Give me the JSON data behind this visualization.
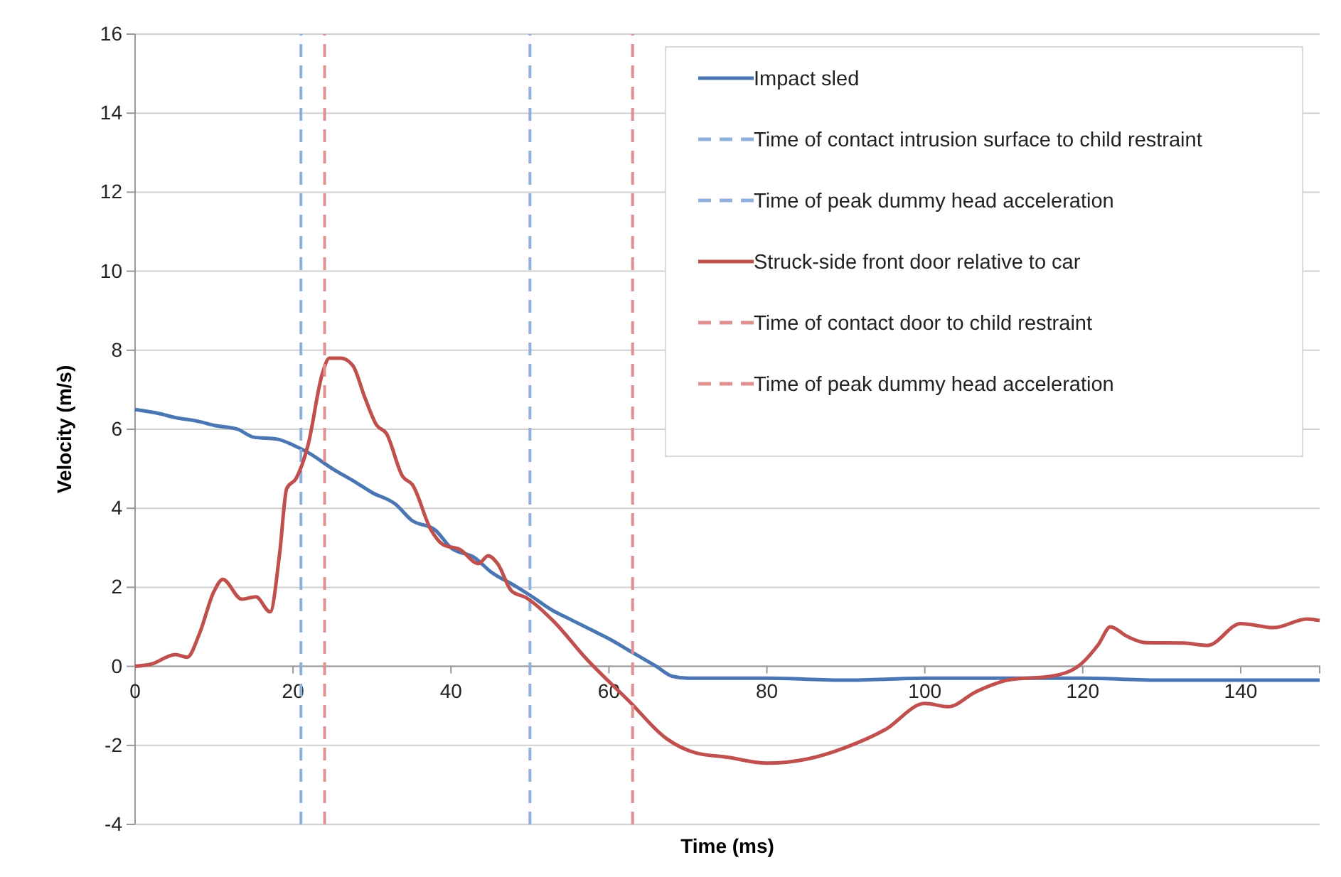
{
  "chart_data": {
    "type": "line",
    "xlabel": "Time (ms)",
    "ylabel": "Velocity (m/s)",
    "xlim": [
      0,
      150
    ],
    "ylim": [
      -4,
      16
    ],
    "xticks": [
      0,
      20,
      40,
      60,
      80,
      100,
      120,
      140
    ],
    "yticks": [
      -4,
      -2,
      0,
      2,
      4,
      6,
      8,
      10,
      12,
      14,
      16
    ],
    "grid": "y",
    "legend": "top right",
    "line_style": "solid",
    "marker": "none",
    "series": [
      {
        "name": "Impact sled",
        "color": "#4a76b4",
        "x": [
          0,
          3,
          5,
          8,
          10,
          13,
          15,
          18,
          20,
          22,
          25,
          28,
          30,
          33,
          35,
          38,
          40,
          43,
          45,
          48,
          50,
          53,
          55,
          58,
          60,
          63,
          66,
          68,
          70,
          75,
          80,
          90,
          100,
          110,
          120,
          130,
          140,
          150
        ],
        "values": [
          6.5,
          6.4,
          6.3,
          6.2,
          6.1,
          6.0,
          5.8,
          5.75,
          5.6,
          5.4,
          5.0,
          4.65,
          4.4,
          4.1,
          3.7,
          3.45,
          3.0,
          2.75,
          2.4,
          2.05,
          1.8,
          1.4,
          1.2,
          0.9,
          0.7,
          0.35,
          0.0,
          -0.25,
          -0.3,
          -0.3,
          -0.3,
          -0.35,
          -0.3,
          -0.3,
          -0.3,
          -0.35,
          -0.35,
          -0.35
        ]
      },
      {
        "name": "Time of contact intrusion surface to child restraint",
        "color": "#8fb0dc",
        "line_style": "dashed",
        "x": [
          21,
          21
        ],
        "values": [
          -4,
          16
        ]
      },
      {
        "name": "Time of peak dummy head acceleration",
        "color": "#8fb0dc",
        "line_style": "dashed",
        "x": [
          50,
          50
        ],
        "values": [
          -4,
          16
        ]
      },
      {
        "name": "Struck-side front door relative to car",
        "color": "#c0504d",
        "x": [
          0,
          2.1,
          5.1,
          6.6,
          8.1,
          10,
          11.1,
          13.5,
          15.3,
          17.1,
          18.3,
          19.2,
          20.4,
          21.9,
          23.7,
          24.6,
          26.1,
          27.6,
          29.1,
          30.6,
          31.8,
          33.9,
          35.1,
          37.5,
          39,
          41.1,
          43.5,
          44.7,
          45.9,
          47.7,
          49.5,
          52.9,
          57.1,
          62.5,
          67.3,
          71,
          75,
          80,
          85,
          90,
          95,
          100,
          103,
          106.5,
          110.7,
          116,
          119.6,
          122,
          123.5,
          125.6,
          128,
          132.8,
          135.8,
          140,
          144.2,
          148.4,
          150
        ],
        "values": [
          0,
          0.06,
          0.3,
          0.23,
          0.8,
          1.9,
          2.2,
          1.7,
          1.76,
          1.38,
          2.85,
          4.5,
          4.76,
          5.6,
          7.4,
          7.8,
          7.8,
          7.6,
          6.8,
          6.1,
          5.9,
          4.8,
          4.6,
          3.44,
          3.08,
          2.96,
          2.6,
          2.8,
          2.6,
          1.9,
          1.74,
          1.16,
          0.2,
          -0.87,
          -1.83,
          -2.19,
          -2.3,
          -2.45,
          -2.35,
          -2.05,
          -1.6,
          -0.94,
          -1.02,
          -0.64,
          -0.34,
          -0.25,
          0.03,
          0.56,
          1.0,
          0.76,
          0.6,
          0.59,
          0.53,
          1.08,
          0.98,
          1.2,
          1.16
        ]
      },
      {
        "name": "Time of contact door to child restraint",
        "color": "#e0908e",
        "line_style": "dashed",
        "x": [
          24,
          24
        ],
        "values": [
          -4,
          16
        ]
      },
      {
        "name": "Time of peak dummy head acceleration",
        "color": "#e0908e",
        "line_style": "dashed",
        "x": [
          63,
          63
        ],
        "values": [
          -4,
          16
        ]
      }
    ]
  }
}
